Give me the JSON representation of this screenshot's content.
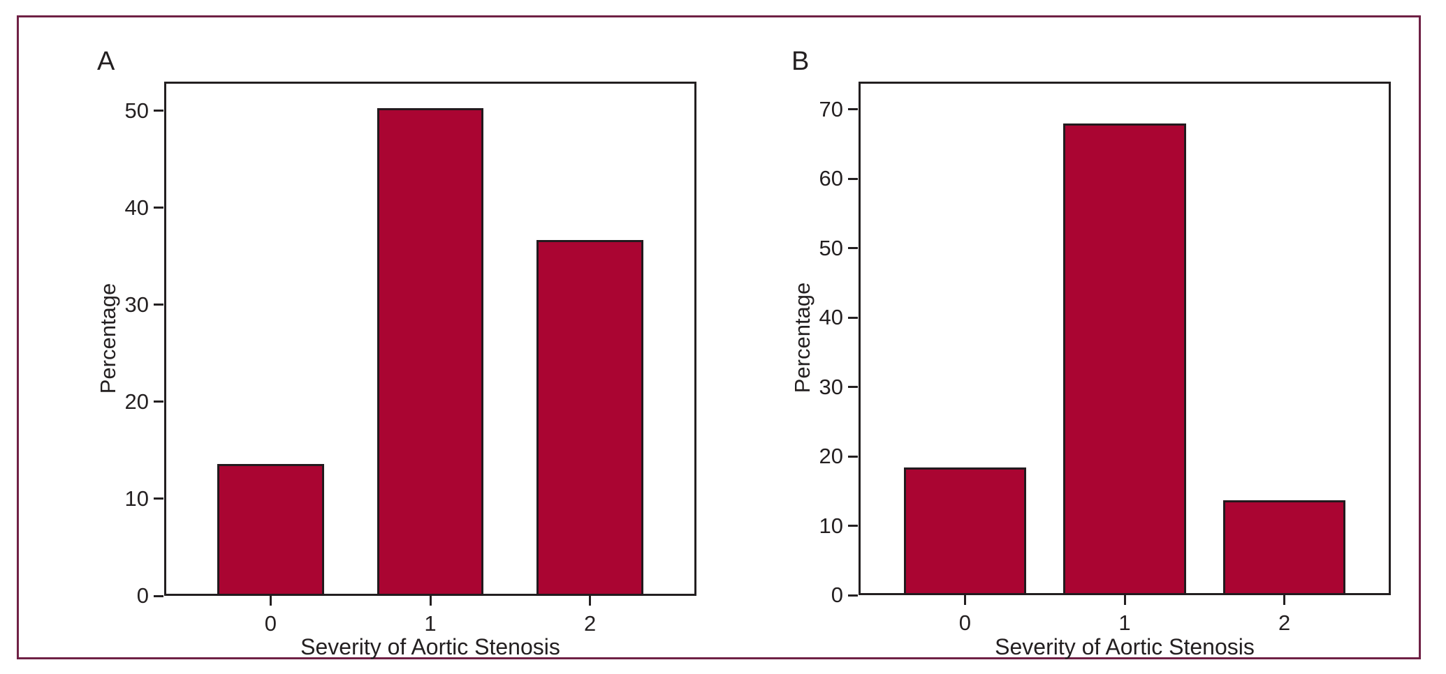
{
  "figure": {
    "background_color": "#FFFFFF",
    "border_color": "#6F2145",
    "axis_color": "#231F20"
  },
  "chart_data": [
    {
      "type": "bar",
      "panel_label": "A",
      "title": "",
      "categories": [
        "0",
        "1",
        "2"
      ],
      "values": [
        13.6,
        50.3,
        36.7
      ],
      "xlabel": "Severity of Aortic Stenosis",
      "ylabel": "Percentage",
      "ylim": [
        0,
        53
      ],
      "yticks": [
        0,
        10,
        20,
        30,
        40,
        50
      ],
      "grid": false,
      "legend_position": "none",
      "bar_color": "#AA0532",
      "bar_edge_color": "#231A1E"
    },
    {
      "type": "bar",
      "panel_label": "B",
      "title": "",
      "categories": [
        "0",
        "1",
        "2"
      ],
      "values": [
        18.4,
        68.0,
        13.7
      ],
      "xlabel": "Severity of Aortic Stenosis",
      "ylabel": "Percentage",
      "ylim": [
        0,
        74
      ],
      "yticks": [
        0,
        10,
        20,
        30,
        40,
        50,
        60,
        70
      ],
      "grid": false,
      "legend_position": "none",
      "bar_color": "#AA0532",
      "bar_edge_color": "#231A1E"
    }
  ]
}
